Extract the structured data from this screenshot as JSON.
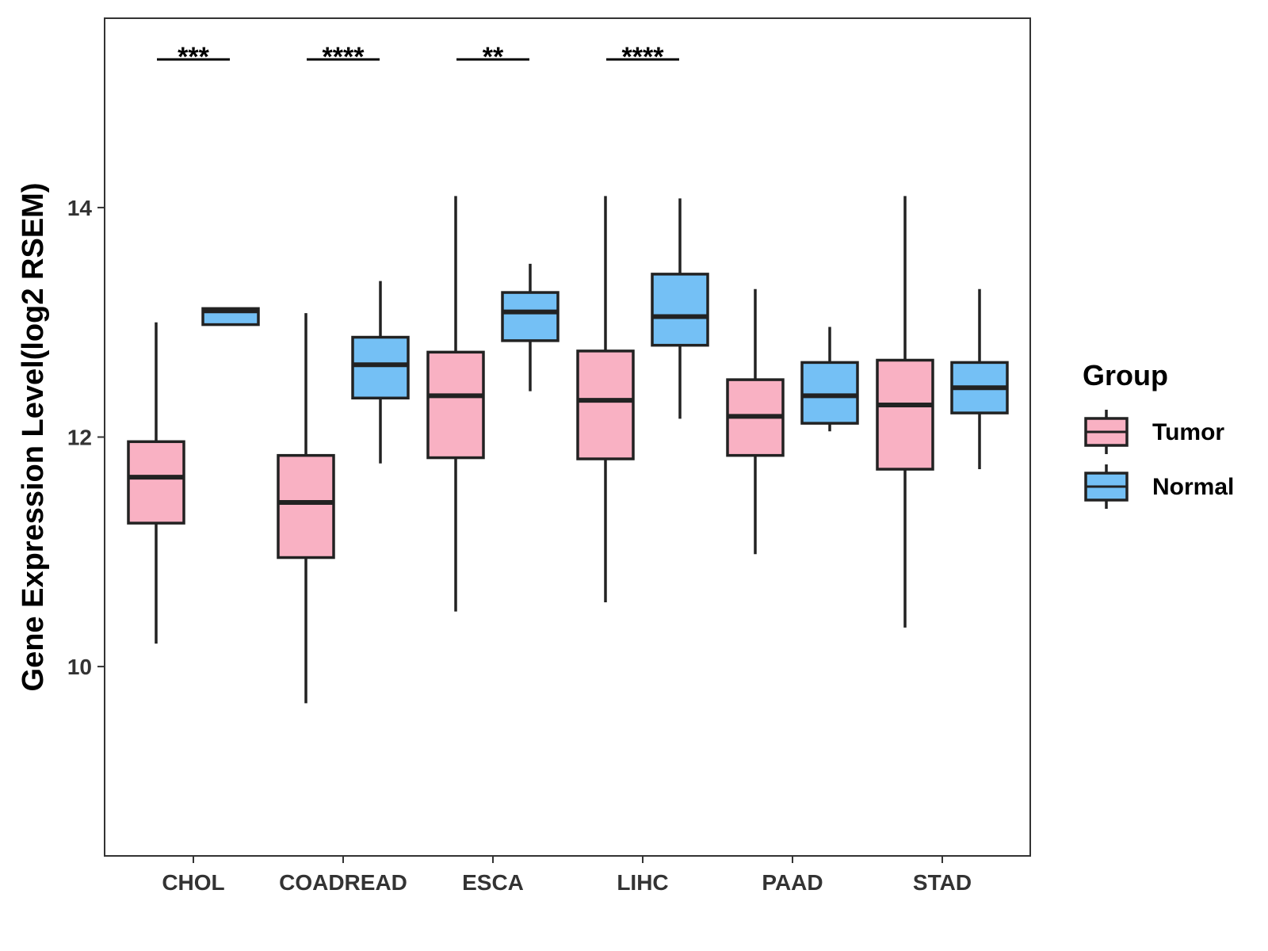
{
  "chart_data": {
    "type": "boxplot",
    "ylabel": "Gene Expression Level(log2 RSEM)",
    "xlabel": "",
    "ylim": [
      8.35,
      15.65
    ],
    "yticks": [
      10,
      12,
      14
    ],
    "categories": [
      "CHOL",
      "COADREAD",
      "ESCA",
      "LIHC",
      "PAAD",
      "STAD"
    ],
    "legend": {
      "title": "Group",
      "position": "right",
      "entries": [
        {
          "name": "Tumor",
          "color": "#F9B1C3"
        },
        {
          "name": "Normal",
          "color": "#74C0F5"
        }
      ]
    },
    "series": [
      {
        "name": "Tumor",
        "color": "#F9B1C3",
        "boxes": [
          {
            "category": "CHOL",
            "min": 10.2,
            "q1": 11.25,
            "median": 11.65,
            "q3": 11.96,
            "max": 13.0
          },
          {
            "category": "COADREAD",
            "min": 9.68,
            "q1": 10.95,
            "median": 11.43,
            "q3": 11.84,
            "max": 13.08
          },
          {
            "category": "ESCA",
            "min": 10.48,
            "q1": 11.82,
            "median": 12.36,
            "q3": 12.74,
            "max": 14.1
          },
          {
            "category": "LIHC",
            "min": 10.56,
            "q1": 11.81,
            "median": 12.32,
            "q3": 12.75,
            "max": 14.1
          },
          {
            "category": "PAAD",
            "min": 10.98,
            "q1": 11.84,
            "median": 12.18,
            "q3": 12.5,
            "max": 13.29
          },
          {
            "category": "STAD",
            "min": 10.34,
            "q1": 11.72,
            "median": 12.28,
            "q3": 12.67,
            "max": 14.1
          }
        ]
      },
      {
        "name": "Normal",
        "color": "#74C0F5",
        "boxes": [
          {
            "category": "CHOL",
            "min": 12.98,
            "q1": 12.98,
            "median": 13.1,
            "q3": 13.12,
            "max": 13.12
          },
          {
            "category": "COADREAD",
            "min": 11.77,
            "q1": 12.34,
            "median": 12.63,
            "q3": 12.87,
            "max": 13.36
          },
          {
            "category": "ESCA",
            "min": 12.4,
            "q1": 12.84,
            "median": 13.09,
            "q3": 13.26,
            "max": 13.51
          },
          {
            "category": "LIHC",
            "min": 12.16,
            "q1": 12.8,
            "median": 13.05,
            "q3": 13.42,
            "max": 14.08
          },
          {
            "category": "PAAD",
            "min": 12.05,
            "q1": 12.12,
            "median": 12.36,
            "q3": 12.65,
            "max": 12.96
          },
          {
            "category": "STAD",
            "min": 11.72,
            "q1": 12.21,
            "median": 12.43,
            "q3": 12.65,
            "max": 13.29
          }
        ]
      }
    ],
    "significance": [
      {
        "category": "CHOL",
        "label": "***"
      },
      {
        "category": "COADREAD",
        "label": "****"
      },
      {
        "category": "ESCA",
        "label": "**"
      },
      {
        "category": "LIHC",
        "label": "****"
      }
    ],
    "colors": {
      "frame": "#333333",
      "stroke": "#222222",
      "text": "#333333"
    }
  }
}
